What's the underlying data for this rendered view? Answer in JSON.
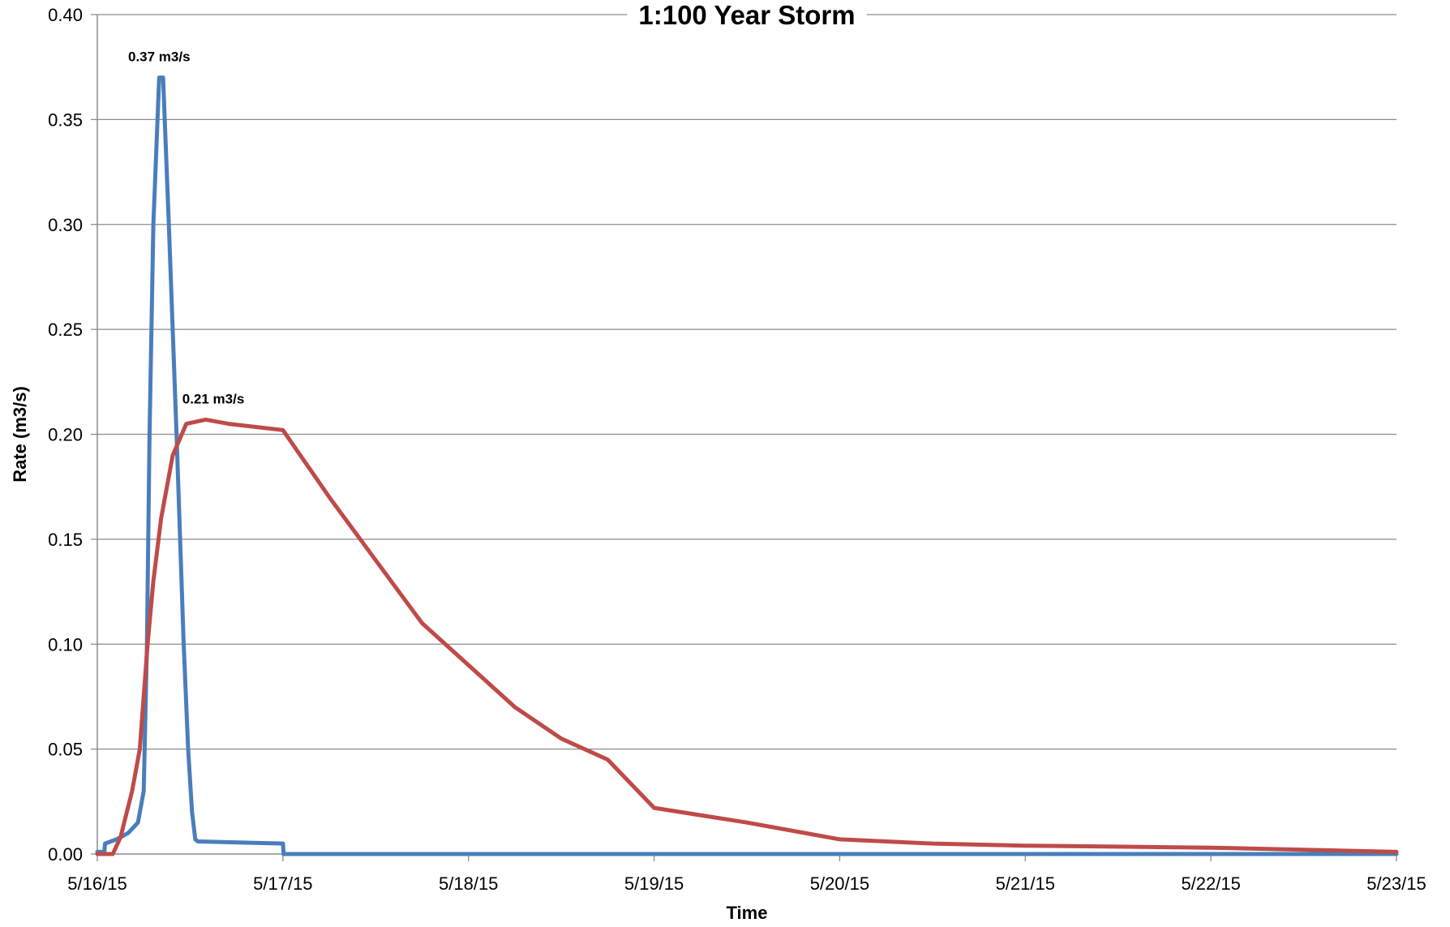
{
  "chart_data": {
    "type": "line",
    "title": "1:100 Year Storm",
    "xlabel": "Time",
    "ylabel": "Rate (m3/s)",
    "x_type": "date",
    "xlim": [
      "2015-05-16",
      "2015-05-23"
    ],
    "ylim": [
      0,
      0.4
    ],
    "x_tick_labels": [
      "5/16/15",
      "5/17/15",
      "5/18/15",
      "5/19/15",
      "5/20/15",
      "5/21/15",
      "5/22/15",
      "5/23/15"
    ],
    "y_tick_labels": [
      "0.00",
      "0.05",
      "0.10",
      "0.15",
      "0.20",
      "0.25",
      "0.30",
      "0.35",
      "0.40"
    ],
    "grid": true,
    "legend": "none",
    "series": [
      {
        "color": "#4a7ebb",
        "points": [
          [
            "2015-05-16 00:00",
            0.001
          ],
          [
            "2015-05-16 00:55",
            0.001
          ],
          [
            "2015-05-16 01:00",
            0.005
          ],
          [
            "2015-05-16 02:30",
            0.007
          ],
          [
            "2015-05-16 04:00",
            0.01
          ],
          [
            "2015-05-16 05:15",
            0.015
          ],
          [
            "2015-05-16 06:00",
            0.03
          ],
          [
            "2015-05-16 06:25",
            0.1
          ],
          [
            "2015-05-16 06:45",
            0.2
          ],
          [
            "2015-05-16 07:15",
            0.3
          ],
          [
            "2015-05-16 08:00",
            0.37
          ],
          [
            "2015-05-16 08:30",
            0.37
          ],
          [
            "2015-05-16 09:15",
            0.3
          ],
          [
            "2015-05-16 10:15",
            0.2
          ],
          [
            "2015-05-16 11:10",
            0.1
          ],
          [
            "2015-05-16 11:45",
            0.05
          ],
          [
            "2015-05-16 12:15",
            0.02
          ],
          [
            "2015-05-16 12:40",
            0.007
          ],
          [
            "2015-05-16 13:00",
            0.006
          ],
          [
            "2015-05-16 24:00",
            0.005
          ],
          [
            "2015-05-17 00:05",
            0.0
          ],
          [
            "2015-05-23 00:00",
            0.0
          ]
        ]
      },
      {
        "color": "#be4b48",
        "points": [
          [
            "2015-05-16 00:00",
            0.0
          ],
          [
            "2015-05-16 02:00",
            0.0
          ],
          [
            "2015-05-16 03:00",
            0.008
          ],
          [
            "2015-05-16 04:30",
            0.03
          ],
          [
            "2015-05-16 05:30",
            0.05
          ],
          [
            "2015-05-16 06:30",
            0.1
          ],
          [
            "2015-05-16 07:15",
            0.13
          ],
          [
            "2015-05-16 08:15",
            0.16
          ],
          [
            "2015-05-16 09:45",
            0.19
          ],
          [
            "2015-05-16 11:30",
            0.205
          ],
          [
            "2015-05-16 14:00",
            0.207
          ],
          [
            "2015-05-16 17:00",
            0.205
          ],
          [
            "2015-05-16 24:00",
            0.202
          ],
          [
            "2015-05-17 06:00",
            0.17
          ],
          [
            "2015-05-17 12:00",
            0.14
          ],
          [
            "2015-05-17 18:00",
            0.11
          ],
          [
            "2015-05-18 00:00",
            0.09
          ],
          [
            "2015-05-18 06:00",
            0.07
          ],
          [
            "2015-05-18 12:00",
            0.055
          ],
          [
            "2015-05-18 18:00",
            0.045
          ],
          [
            "2015-05-19 00:00",
            0.022
          ],
          [
            "2015-05-19 12:00",
            0.015
          ],
          [
            "2015-05-20 00:00",
            0.007
          ],
          [
            "2015-05-20 12:00",
            0.005
          ],
          [
            "2015-05-21 00:00",
            0.004
          ],
          [
            "2015-05-22 00:00",
            0.003
          ],
          [
            "2015-05-23 00:00",
            0.001
          ]
        ]
      }
    ],
    "annotations": [
      {
        "text": "0.37 m3/s",
        "x": "2015-05-16 08:00",
        "y": 0.37
      },
      {
        "text": "0.21 m3/s",
        "x": "2015-05-16 15:00",
        "y": 0.207
      }
    ]
  }
}
